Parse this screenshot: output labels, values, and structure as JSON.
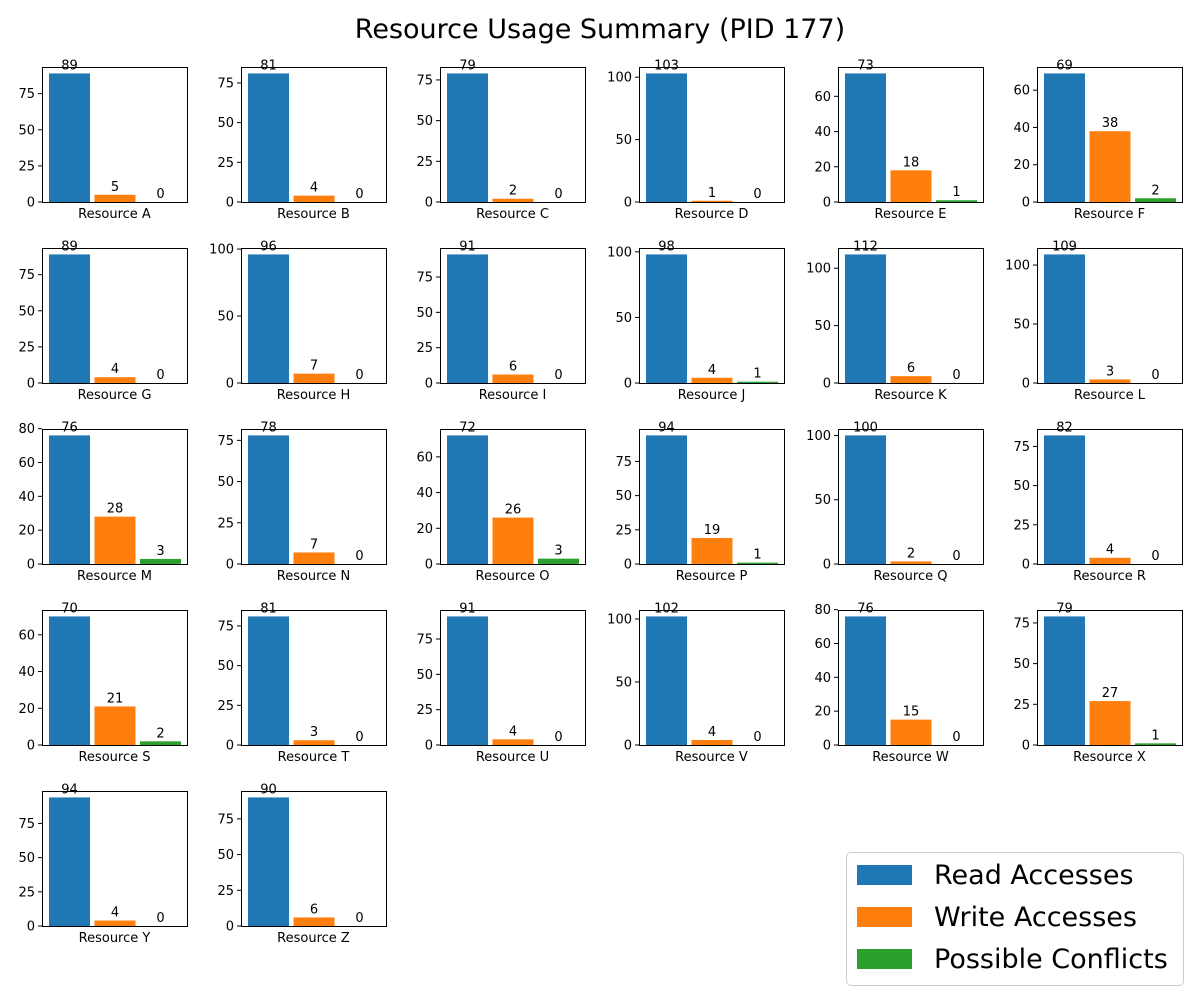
{
  "title": "Resource Usage Summary (PID 177)",
  "colors": {
    "read": "#1f77b4",
    "write": "#ff7f0e",
    "conflict": "#2ca02c"
  },
  "legend": {
    "items": [
      {
        "label": "Read Accesses",
        "color": "#1f77b4"
      },
      {
        "label": "Write Accesses",
        "color": "#ff7f0e"
      },
      {
        "label": "Possible Conflicts",
        "color": "#2ca02c"
      }
    ]
  },
  "chart_data": {
    "type": "bar",
    "series_names": [
      "Read Accesses",
      "Write Accesses",
      "Possible Conflicts"
    ],
    "panels": [
      {
        "label": "Resource A",
        "values": [
          89,
          5,
          0
        ],
        "yticks": [
          0,
          25,
          50,
          75
        ]
      },
      {
        "label": "Resource B",
        "values": [
          81,
          4,
          0
        ],
        "yticks": [
          0,
          25,
          50,
          75
        ]
      },
      {
        "label": "Resource C",
        "values": [
          79,
          2,
          0
        ],
        "yticks": [
          0,
          25,
          50,
          75
        ]
      },
      {
        "label": "Resource D",
        "values": [
          103,
          1,
          0
        ],
        "yticks": [
          0,
          50,
          100
        ]
      },
      {
        "label": "Resource E",
        "values": [
          73,
          18,
          1
        ],
        "yticks": [
          0,
          20,
          40,
          60
        ]
      },
      {
        "label": "Resource F",
        "values": [
          69,
          38,
          2
        ],
        "yticks": [
          0,
          20,
          40,
          60
        ]
      },
      {
        "label": "Resource G",
        "values": [
          89,
          4,
          0
        ],
        "yticks": [
          0,
          25,
          50,
          75
        ]
      },
      {
        "label": "Resource H",
        "values": [
          96,
          7,
          0
        ],
        "yticks": [
          0,
          50,
          100
        ]
      },
      {
        "label": "Resource I",
        "values": [
          91,
          6,
          0
        ],
        "yticks": [
          0,
          25,
          50,
          75
        ]
      },
      {
        "label": "Resource J",
        "values": [
          98,
          4,
          1
        ],
        "yticks": [
          0,
          50,
          100
        ]
      },
      {
        "label": "Resource K",
        "values": [
          112,
          6,
          0
        ],
        "yticks": [
          0,
          50,
          100
        ]
      },
      {
        "label": "Resource L",
        "values": [
          109,
          3,
          0
        ],
        "yticks": [
          0,
          50,
          100
        ]
      },
      {
        "label": "Resource M",
        "values": [
          76,
          28,
          3
        ],
        "yticks": [
          0,
          20,
          40,
          60,
          80
        ]
      },
      {
        "label": "Resource N",
        "values": [
          78,
          7,
          0
        ],
        "yticks": [
          0,
          25,
          50,
          75
        ]
      },
      {
        "label": "Resource O",
        "values": [
          72,
          26,
          3
        ],
        "yticks": [
          0,
          20,
          40,
          60
        ]
      },
      {
        "label": "Resource P",
        "values": [
          94,
          19,
          1
        ],
        "yticks": [
          0,
          25,
          50,
          75
        ]
      },
      {
        "label": "Resource Q",
        "values": [
          100,
          2,
          0
        ],
        "yticks": [
          0,
          50,
          100
        ]
      },
      {
        "label": "Resource R",
        "values": [
          82,
          4,
          0
        ],
        "yticks": [
          0,
          25,
          50,
          75
        ]
      },
      {
        "label": "Resource S",
        "values": [
          70,
          21,
          2
        ],
        "yticks": [
          0,
          20,
          40,
          60
        ]
      },
      {
        "label": "Resource T",
        "values": [
          81,
          3,
          0
        ],
        "yticks": [
          0,
          25,
          50,
          75
        ]
      },
      {
        "label": "Resource U",
        "values": [
          91,
          4,
          0
        ],
        "yticks": [
          0,
          25,
          50,
          75
        ]
      },
      {
        "label": "Resource V",
        "values": [
          102,
          4,
          0
        ],
        "yticks": [
          0,
          50,
          100
        ]
      },
      {
        "label": "Resource W",
        "values": [
          76,
          15,
          0
        ],
        "yticks": [
          0,
          20,
          40,
          60,
          80
        ]
      },
      {
        "label": "Resource X",
        "values": [
          79,
          27,
          1
        ],
        "yticks": [
          0,
          25,
          50,
          75
        ]
      },
      {
        "label": "Resource Y",
        "values": [
          94,
          4,
          0
        ],
        "yticks": [
          0,
          25,
          50,
          75
        ]
      },
      {
        "label": "Resource Z",
        "values": [
          90,
          6,
          0
        ],
        "yticks": [
          0,
          25,
          50,
          75
        ]
      }
    ]
  }
}
